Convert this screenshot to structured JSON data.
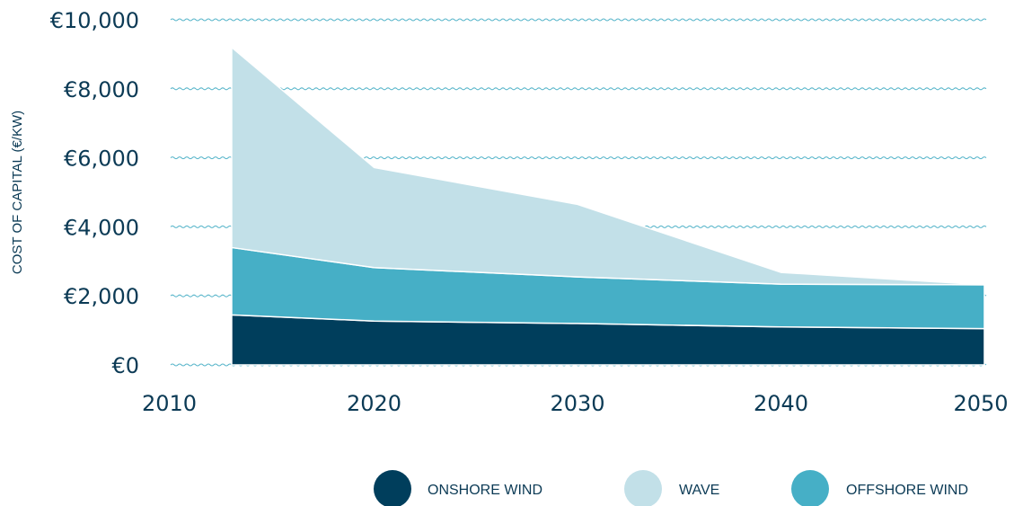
{
  "chart_data": {
    "type": "area",
    "stacked": true,
    "ylabel": "COST OF CAPITAL (€/KW)",
    "xlabel": "",
    "title": "",
    "x_ticks": [
      "2010",
      "2020",
      "2030",
      "2040",
      "2050"
    ],
    "y_ticks": [
      "€0",
      "€2,000",
      "€4,000",
      "€6,000",
      "€8,000",
      "€10,000"
    ],
    "xlim": [
      2010,
      2050
    ],
    "ylim": [
      0,
      10000
    ],
    "grid": "horizontal wavy lines",
    "legend_position": "bottom-right",
    "x": [
      2013,
      2020,
      2030,
      2040,
      2050
    ],
    "series": [
      {
        "name": "ONSHORE WIND",
        "color": "#003e5c",
        "values": [
          1450,
          1270,
          1200,
          1100,
          1050
        ]
      },
      {
        "name": "OFFSHORE WIND",
        "color": "#46afc6",
        "values": [
          1950,
          1550,
          1350,
          1240,
          1270
        ]
      },
      {
        "name": "WAVE",
        "color": "#c2e0e8",
        "values": [
          5800,
          2900,
          2100,
          340,
          0
        ]
      }
    ],
    "legend_order": [
      "ONSHORE WIND",
      "WAVE",
      "OFFSHORE WIND"
    ]
  }
}
